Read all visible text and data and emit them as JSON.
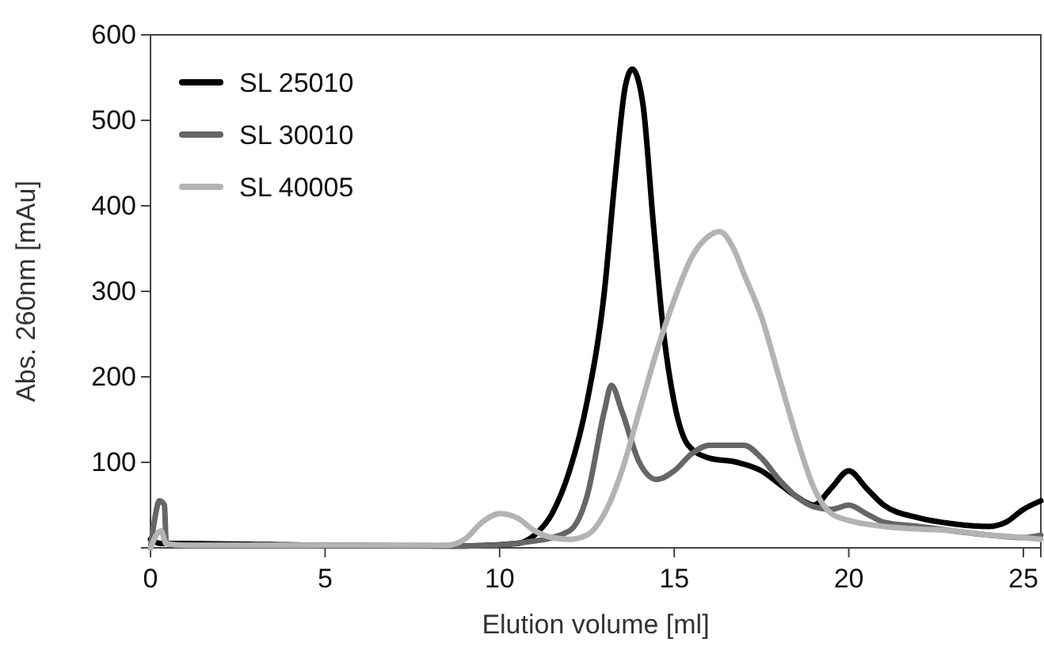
{
  "chart_data": {
    "type": "line",
    "xlabel": "Elution volume [ml]",
    "ylabel": "Abs. 260nm [mAu]",
    "xlim": [
      0,
      25.5
    ],
    "ylim": [
      0,
      600
    ],
    "xticks": [
      0,
      5,
      10,
      15,
      20,
      25
    ],
    "yticks": [
      100,
      200,
      300,
      400,
      500,
      600
    ],
    "grid": false,
    "legend": "top left",
    "line_style": "solid",
    "series": [
      {
        "name": "SL 25010",
        "color": "#000000",
        "x": [
          0,
          0.3,
          1,
          5,
          9,
          10.5,
          11,
          11.5,
          12,
          12.5,
          13,
          13.3,
          13.6,
          13.8,
          14.1,
          14.4,
          14.7,
          15,
          15.4,
          16,
          16.8,
          17.5,
          18,
          18.5,
          19,
          19.5,
          20,
          20.5,
          21,
          22,
          23,
          24,
          24.5,
          25,
          25.5
        ],
        "values": [
          10,
          5,
          5,
          3,
          2,
          5,
          15,
          40,
          90,
          170,
          300,
          430,
          540,
          560,
          520,
          380,
          250,
          170,
          120,
          105,
          100,
          90,
          75,
          60,
          50,
          70,
          90,
          70,
          50,
          35,
          28,
          25,
          30,
          45,
          55
        ]
      },
      {
        "name": "SL 30010",
        "color": "#666666",
        "x": [
          0,
          0.15,
          0.25,
          0.4,
          0.45,
          1,
          5,
          9,
          11,
          12,
          12.5,
          13,
          13.2,
          13.5,
          14,
          14.5,
          15,
          15.5,
          16,
          17,
          17.5,
          18,
          18.5,
          19,
          19.5,
          20,
          20.5,
          21,
          22,
          24,
          25,
          25.5
        ],
        "values": [
          0,
          40,
          55,
          50,
          5,
          3,
          3,
          2,
          8,
          20,
          60,
          160,
          190,
          160,
          100,
          80,
          90,
          110,
          120,
          120,
          105,
          80,
          60,
          48,
          45,
          50,
          40,
          30,
          25,
          15,
          12,
          15
        ]
      },
      {
        "name": "SL 40005",
        "color": "#b3b3b3",
        "x": [
          0,
          0.3,
          0.45,
          1,
          5,
          8.5,
          9,
          9.5,
          10,
          10.5,
          11,
          11.5,
          12,
          12.5,
          13,
          13.5,
          14,
          14.5,
          15,
          15.5,
          16,
          16.3,
          16.7,
          17,
          17.5,
          18,
          18.5,
          19,
          19.5,
          20,
          21,
          22,
          23,
          24,
          25,
          25.5
        ],
        "values": [
          0,
          20,
          5,
          3,
          3,
          3,
          10,
          30,
          40,
          35,
          20,
          12,
          10,
          15,
          40,
          90,
          160,
          230,
          290,
          340,
          365,
          370,
          350,
          320,
          270,
          200,
          130,
          70,
          40,
          32,
          25,
          22,
          20,
          15,
          12,
          10
        ]
      }
    ]
  }
}
